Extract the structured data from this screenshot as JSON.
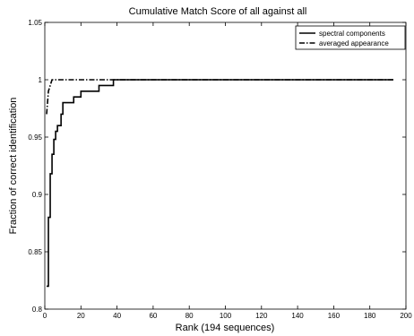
{
  "chart_data": {
    "type": "line",
    "title": "Cumulative Match Score of all against all",
    "xlabel": "Rank (194 sequences)",
    "ylabel": "Fraction of correct identification",
    "xlim": [
      0,
      200
    ],
    "ylim": [
      0.8,
      1.05
    ],
    "xticks": [
      0,
      20,
      40,
      60,
      80,
      100,
      120,
      140,
      160,
      180,
      200
    ],
    "yticks": [
      0.8,
      0.85,
      0.9,
      0.95,
      1,
      1.05
    ],
    "xtick_labels": [
      "0",
      "20",
      "40",
      "60",
      "80",
      "100",
      "120",
      "140",
      "160",
      "180",
      "200"
    ],
    "ytick_labels": [
      "0.8",
      "0.85",
      "0.9",
      "0.95",
      "1",
      "1.05"
    ],
    "grid": false,
    "legend_position": "top-right",
    "series": [
      {
        "name": "spectral components",
        "style": "solid",
        "color": "#000000",
        "x": [
          1,
          2,
          3,
          4,
          5,
          6,
          7,
          8,
          9,
          10,
          12,
          14,
          16,
          18,
          20,
          22,
          24,
          26,
          28,
          30,
          32,
          34,
          36,
          37,
          38,
          40,
          60,
          100,
          140,
          180,
          193
        ],
        "y": [
          0.82,
          0.88,
          0.918,
          0.935,
          0.948,
          0.955,
          0.96,
          0.96,
          0.97,
          0.98,
          0.98,
          0.98,
          0.985,
          0.985,
          0.99,
          0.99,
          0.99,
          0.99,
          0.99,
          0.995,
          0.995,
          0.995,
          0.995,
          0.995,
          1.0,
          1.0,
          1.0,
          1.0,
          1.0,
          1.0,
          1.0
        ]
      },
      {
        "name": "averaged appearance",
        "style": "dashdot",
        "color": "#000000",
        "x": [
          1,
          2,
          3,
          4,
          20,
          40,
          100,
          160,
          193
        ],
        "y": [
          0.97,
          0.99,
          0.995,
          1.0,
          1.0,
          1.0,
          1.0,
          1.0,
          1.0
        ]
      }
    ]
  }
}
